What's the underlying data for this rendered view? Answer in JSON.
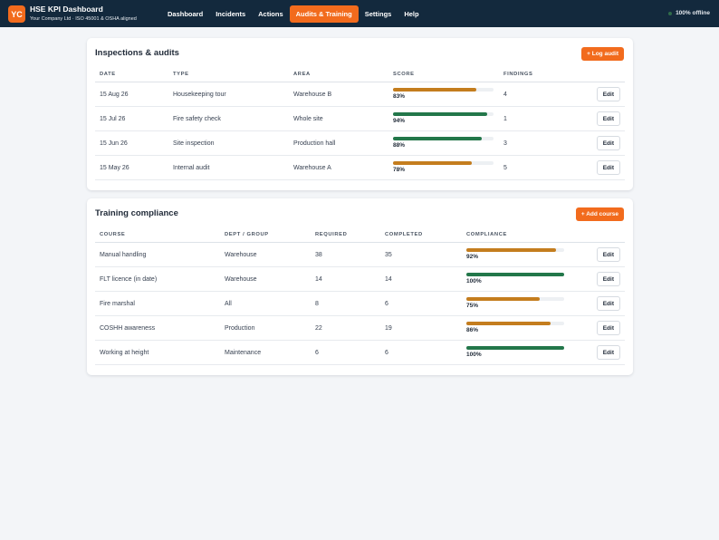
{
  "header": {
    "logo_text": "YC",
    "title": "HSE KPI Dashboard",
    "subtitle": "Your Company Ltd · ISO 45001 & OSHA aligned",
    "nav": [
      {
        "label": "Dashboard",
        "active": false
      },
      {
        "label": "Incidents",
        "active": false
      },
      {
        "label": "Actions",
        "active": false
      },
      {
        "label": "Audits & Training",
        "active": true
      },
      {
        "label": "Settings",
        "active": false
      },
      {
        "label": "Help",
        "active": false
      }
    ],
    "status": "100% offline"
  },
  "colors": {
    "accent": "#f26b1d",
    "good": "#23774a",
    "warning": "#c47d1e",
    "header_bg": "#13293d"
  },
  "audits": {
    "title": "Inspections & audits",
    "button_label": "+ Log audit",
    "columns": [
      "DATE",
      "TYPE",
      "AREA",
      "SCORE",
      "FINDINGS"
    ],
    "rows": [
      {
        "date": "15 Aug 26",
        "type": "Housekeeping tour",
        "area": "Warehouse B",
        "score": 83,
        "score_label": "83%",
        "findings": "4",
        "status": "warning"
      },
      {
        "date": "15 Jul 26",
        "type": "Fire safety check",
        "area": "Whole site",
        "score": 94,
        "score_label": "94%",
        "findings": "1",
        "status": "good"
      },
      {
        "date": "15 Jun 26",
        "type": "Site inspection",
        "area": "Production hall",
        "score": 88,
        "score_label": "88%",
        "findings": "3",
        "status": "good"
      },
      {
        "date": "15 May 26",
        "type": "Internal audit",
        "area": "Warehouse A",
        "score": 78,
        "score_label": "78%",
        "findings": "5",
        "status": "warning"
      }
    ],
    "edit_label": "Edit"
  },
  "training": {
    "title": "Training compliance",
    "button_label": "+ Add course",
    "columns": [
      "COURSE",
      "DEPT / GROUP",
      "REQUIRED",
      "COMPLETED",
      "COMPLIANCE"
    ],
    "rows": [
      {
        "course": "Manual handling",
        "dept": "Warehouse",
        "required": "38",
        "completed": "35",
        "compliance": 92,
        "compliance_label": "92%",
        "status": "warning"
      },
      {
        "course": "FLT licence (in date)",
        "dept": "Warehouse",
        "required": "14",
        "completed": "14",
        "compliance": 100,
        "compliance_label": "100%",
        "status": "good"
      },
      {
        "course": "Fire marshal",
        "dept": "All",
        "required": "8",
        "completed": "6",
        "compliance": 75,
        "compliance_label": "75%",
        "status": "warning"
      },
      {
        "course": "COSHH awareness",
        "dept": "Production",
        "required": "22",
        "completed": "19",
        "compliance": 86,
        "compliance_label": "86%",
        "status": "warning"
      },
      {
        "course": "Working at height",
        "dept": "Maintenance",
        "required": "6",
        "completed": "6",
        "compliance": 100,
        "compliance_label": "100%",
        "status": "good"
      }
    ],
    "edit_label": "Edit"
  }
}
